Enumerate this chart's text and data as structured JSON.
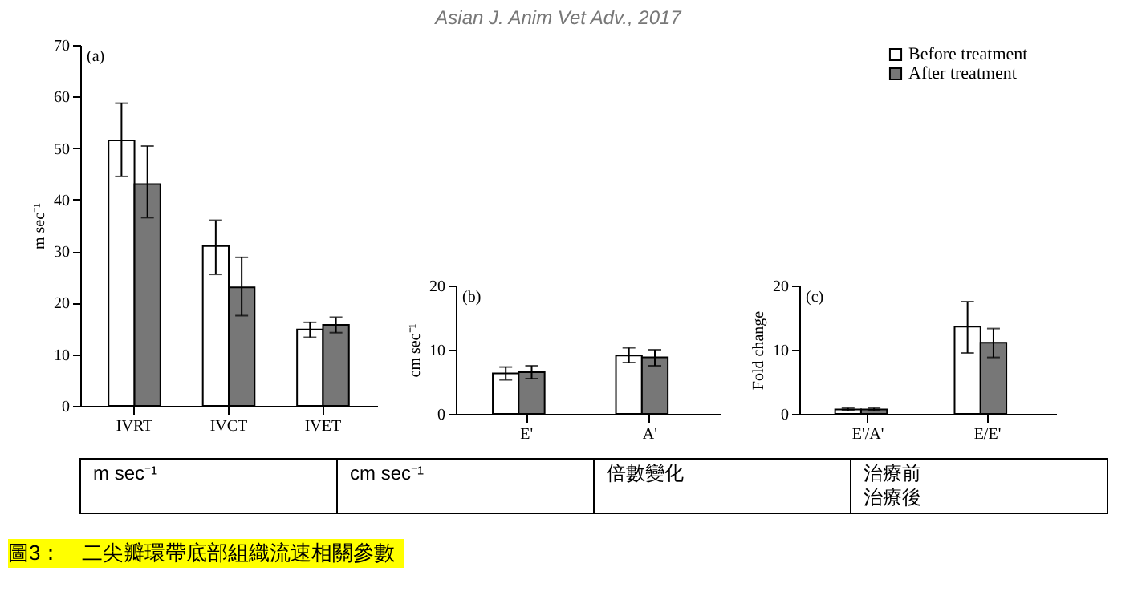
{
  "chart_data": [
    {
      "type": "bar",
      "categories": [
        "IVRT",
        "IVCT",
        "IVET"
      ],
      "ylabel": "m sec⁻¹",
      "ylim": [
        0,
        70
      ],
      "yticks": [
        0,
        10,
        20,
        30,
        40,
        50,
        60,
        70
      ],
      "annotations": [
        "(a)"
      ],
      "series": [
        {
          "color": "#ffffff",
          "values": [
            51.5,
            31,
            14.8
          ],
          "errors": [
            [
              44.5,
              58.7
            ],
            [
              25.5,
              36
            ],
            [
              13.3,
              16.2
            ]
          ]
        },
        {
          "color": "#777777",
          "values": [
            43,
            23,
            15.7
          ],
          "errors": [
            [
              36.5,
              50.4
            ],
            [
              17.5,
              28.8
            ],
            [
              14.2,
              17.2
            ]
          ]
        }
      ]
    },
    {
      "type": "bar",
      "categories": [
        "E'",
        "A'"
      ],
      "ylabel": "cm sec⁻¹",
      "ylim": [
        0,
        20
      ],
      "yticks": [
        0,
        10,
        20
      ],
      "annotations": [
        "(b)"
      ],
      "series": [
        {
          "color": "#ffffff",
          "values": [
            6.3,
            9.1
          ],
          "errors": [
            [
              5.3,
              7.3
            ],
            [
              8,
              10.3
            ]
          ]
        },
        {
          "color": "#777777",
          "values": [
            6.5,
            8.8
          ],
          "errors": [
            [
              5.5,
              7.5
            ],
            [
              7.5,
              10
            ]
          ]
        }
      ]
    },
    {
      "type": "bar",
      "categories": [
        "E'/A'",
        "E/E'"
      ],
      "ylabel": "Fold change",
      "ylim": [
        0,
        20
      ],
      "yticks": [
        0,
        10,
        20
      ],
      "annotations": [
        "(c)"
      ],
      "legend": "top right",
      "series": [
        {
          "name": "Before treatment",
          "color": "#ffffff",
          "values": [
            0.7,
            13.6
          ],
          "errors": [
            [
              0.5,
              0.9
            ],
            [
              9.5,
              17.5
            ]
          ]
        },
        {
          "name": "After treatment",
          "color": "#777777",
          "values": [
            0.7,
            11.1
          ],
          "errors": [
            [
              0.5,
              0.9
            ],
            [
              8.8,
              13.3
            ]
          ]
        }
      ]
    },
    {
      "type": "other",
      "annotations": [
        "Asian J. Anim Vet Adv., 2017",
        "m sec⁻¹",
        "cm sec⁻¹",
        "倍數變化",
        "治療前",
        "治療後",
        "圖3：　二尖瓣環帶底部組織流速相關參數"
      ]
    }
  ]
}
